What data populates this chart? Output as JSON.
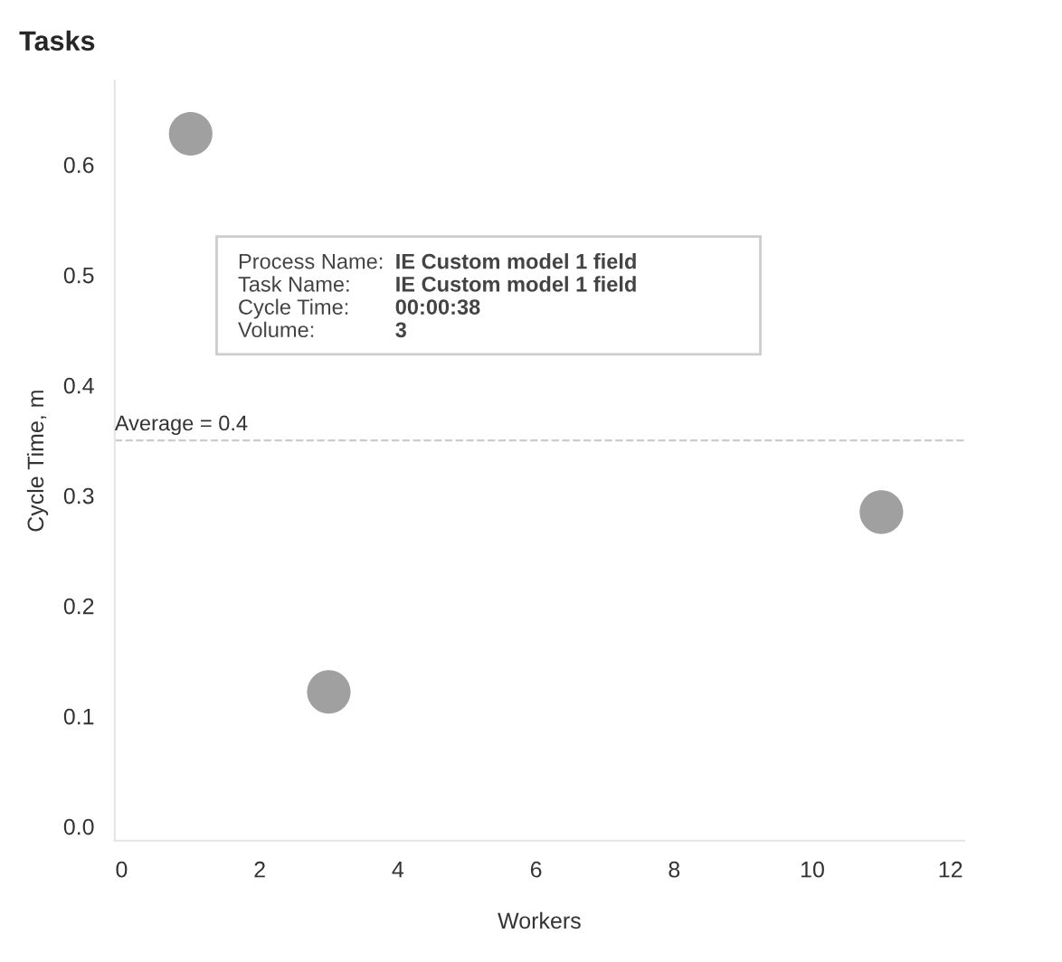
{
  "chart_data": {
    "type": "scatter",
    "title": "Tasks",
    "xlabel": "Workers",
    "ylabel": "Cycle Time, m",
    "x": [
      1,
      3,
      11
    ],
    "series": [
      {
        "color": "#a0a0a0",
        "values": [
          0.628,
          0.122,
          0.285
        ]
      }
    ],
    "xlim": [
      -0.1,
      12.2
    ],
    "xticks": [
      0,
      2,
      4,
      6,
      8,
      10,
      12
    ],
    "ylim": [
      -0.013,
      0.676
    ],
    "yticks": [
      {
        "value": 0,
        "label": "0.0"
      },
      0.1,
      0.2,
      0.3,
      0.4,
      0.5,
      0.6
    ],
    "ref_lines": [
      {
        "axis": "y",
        "value": 0.35,
        "label": "Average = 0.4",
        "color": "#cccccc",
        "line_style": "dashed"
      }
    ],
    "annotations": [
      "Process Name: IE Custom model 1 field",
      "Task Name: IE Custom model 1 field",
      "Cycle Time: 00:00:38",
      "Volume: 3"
    ],
    "marker": "circle",
    "grid": false
  }
}
